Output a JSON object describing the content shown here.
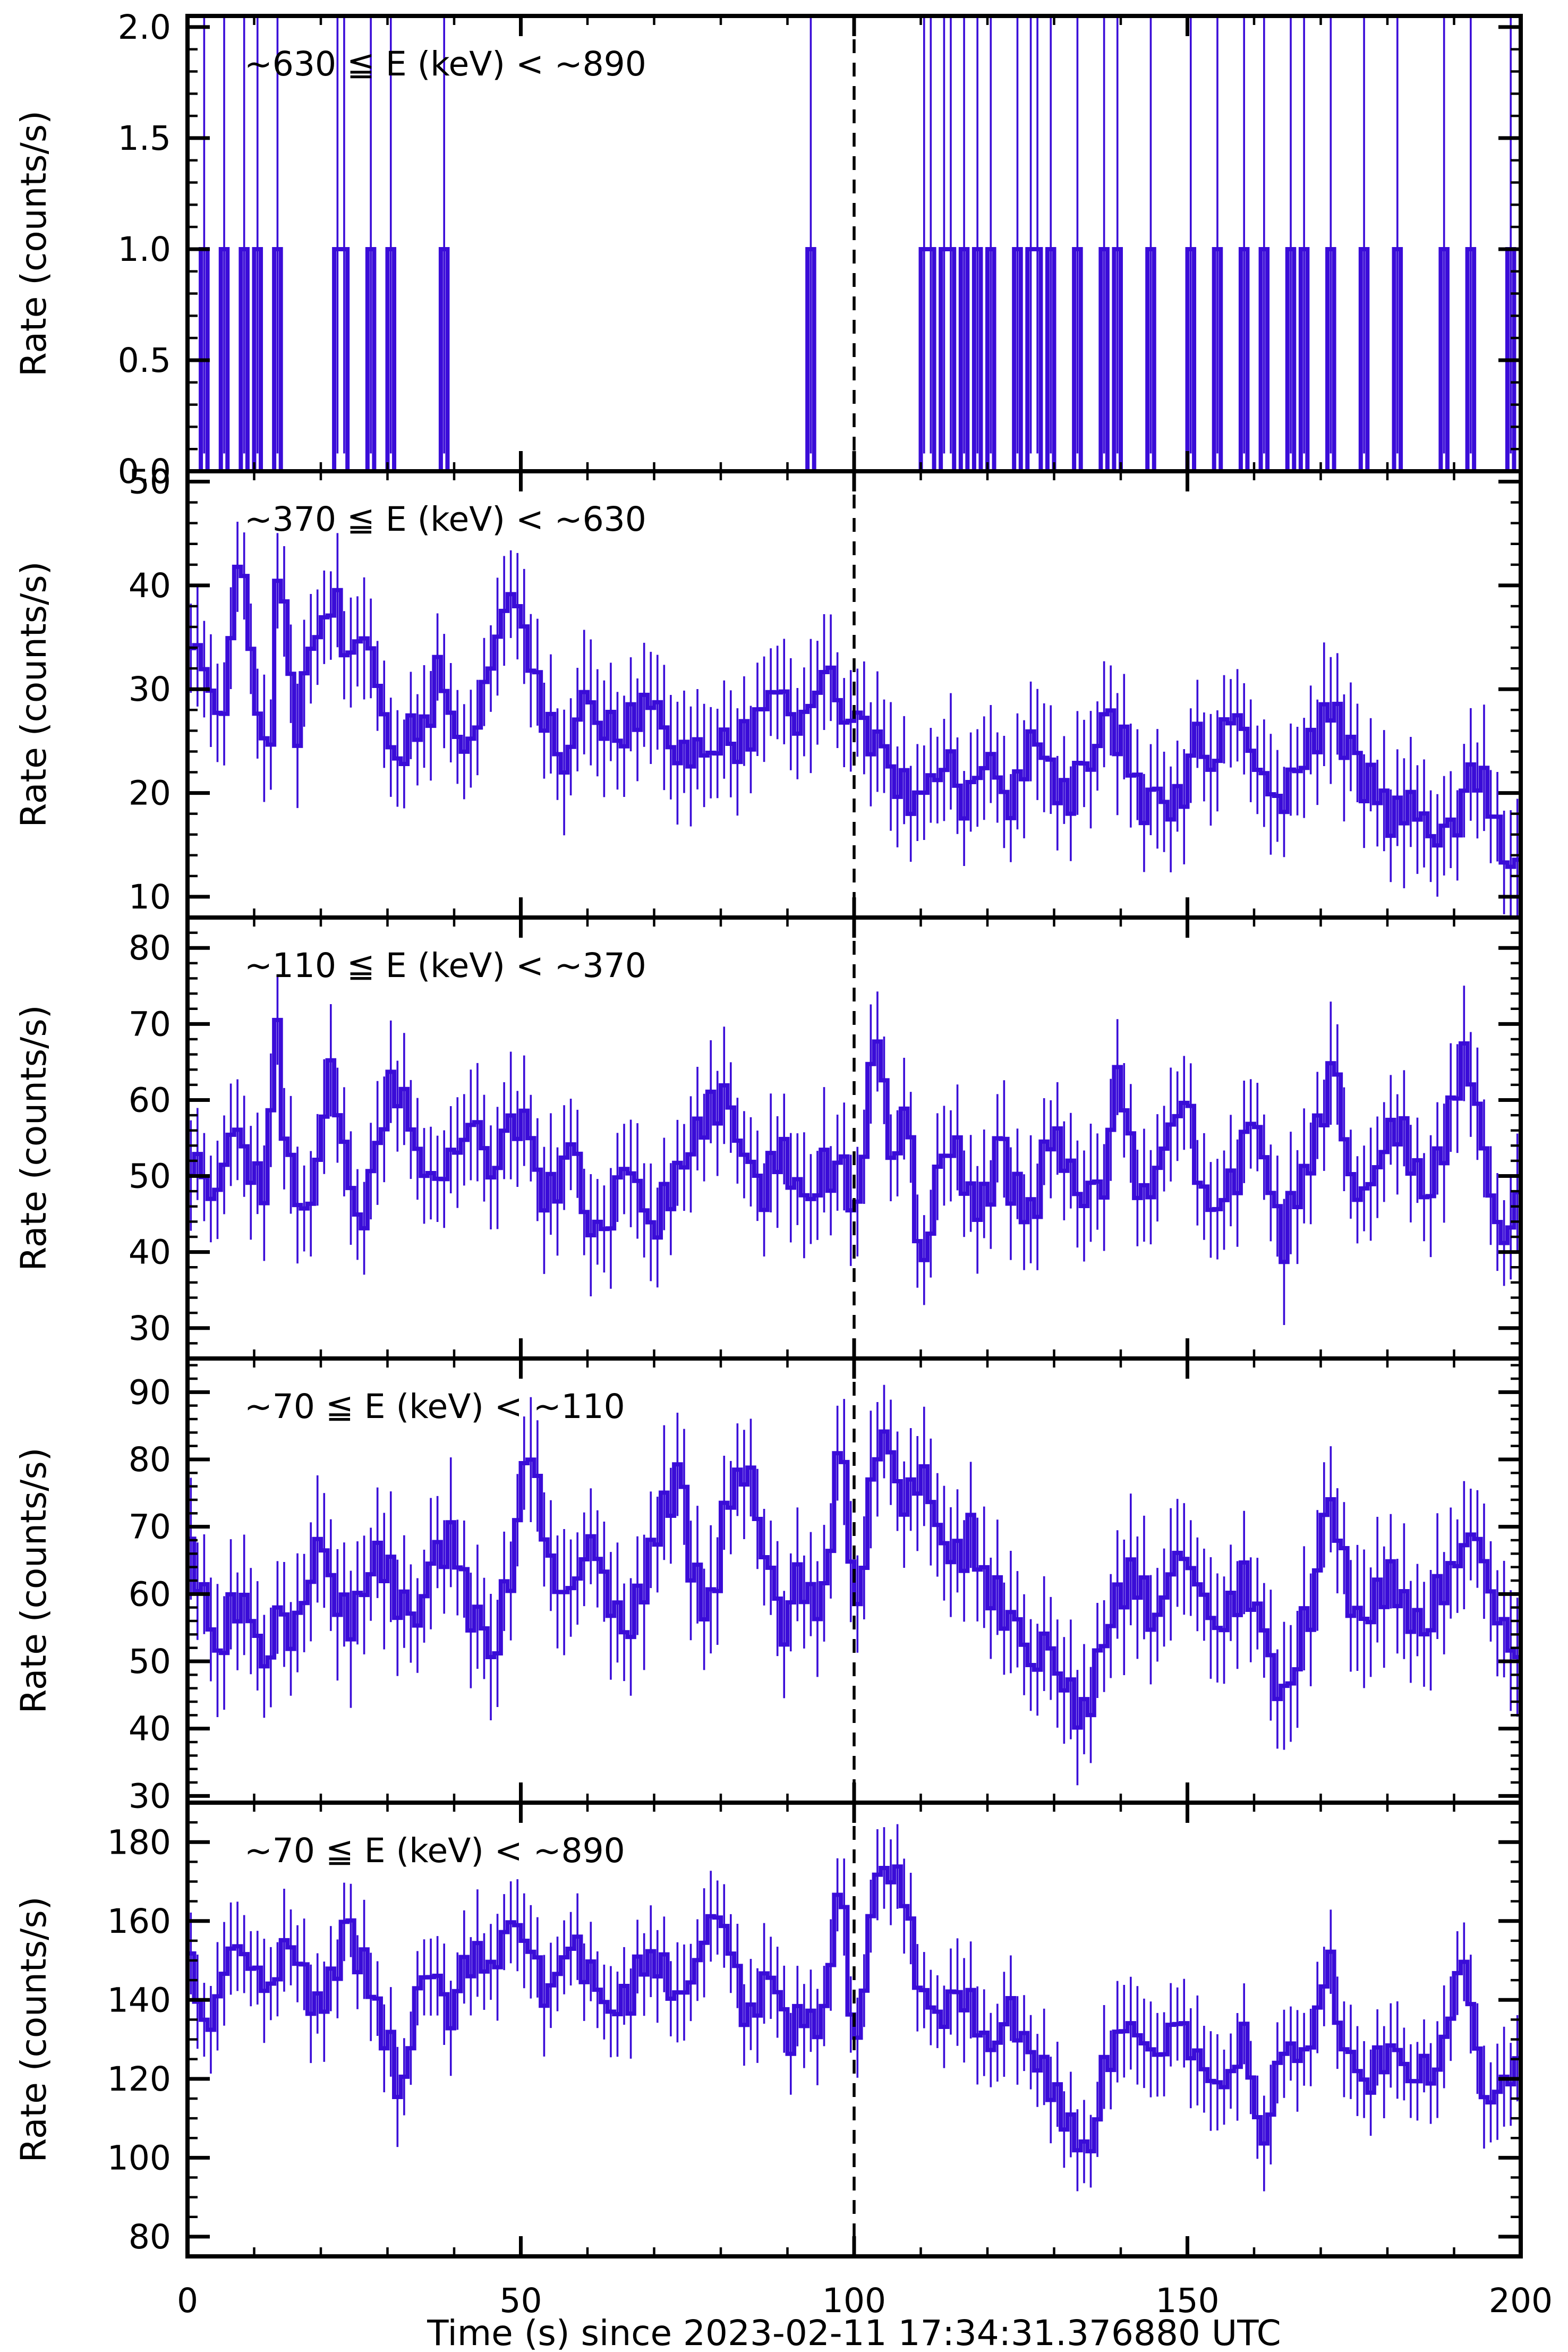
{
  "figure_caption": "Multi-band light curves, stepped histogram with error bars",
  "chart_axes": {
    "x": {
      "min": 0,
      "max": 200,
      "major_values": [
        0,
        50,
        100,
        150,
        200
      ],
      "major_labels": [
        "0",
        "50",
        "100",
        "150",
        "200"
      ],
      "minor_step": 10,
      "label": "Time (s) since 2023-02-11 17:34:31.376880 UTC"
    },
    "y": {
      "label": "Rate (counts/s)"
    },
    "dashed_marker_t": 100
  },
  "style": {
    "series_color": "#3A0CD8",
    "axis_color": "#000000",
    "background": "#ffffff",
    "dashed_line_color": "#000000"
  },
  "render_noise": {
    "t1": [
      0.62,
      -0.81,
      0.24,
      1.0,
      -0.45,
      -1.0,
      0.15,
      0.88,
      -0.62,
      0.95,
      -0.3,
      0.42,
      -1.1,
      0.7,
      -0.2,
      1.05,
      -0.85,
      0.1,
      0.55,
      -0.95,
      0.35,
      -0.6,
      1.15,
      -0.25,
      0.05,
      -1.05,
      0.8,
      0.3,
      -0.7,
      0.9,
      -0.15,
      0.5,
      -1.15,
      0.65,
      -0.4,
      0.2,
      -0.55
    ],
    "t2": [
      -0.35,
      0.75,
      -1.0,
      0.2,
      0.95,
      -0.65,
      0.4,
      -0.15,
      1.1,
      -0.8,
      0.05,
      0.6,
      -1.15,
      0.85,
      -0.45,
      0.25,
      -0.9,
      1.0,
      -0.1,
      0.5,
      -0.7,
      0.15,
      1.05,
      -0.55,
      -0.25,
      0.7,
      -1.05,
      0.45,
      0.9,
      -0.35,
      0.1,
      -0.75,
      0.55,
      1.15,
      -0.5,
      0.3,
      -1.1,
      0.65,
      -0.05,
      0.35,
      -0.85
    ]
  },
  "chart_data": [
    {
      "type": "spike-histogram",
      "title": "~630 ≦ E (keV) < ~890",
      "ylim": [
        0,
        2.05
      ],
      "ytick_values": [
        0,
        0.5,
        1.0,
        1.5,
        2.0
      ],
      "ytick_labels": [
        "0.0",
        "0.5",
        "1.0",
        "1.5",
        "2.0"
      ],
      "y_minor_step": 0.1,
      "bin_width_s": 1,
      "spike_times": [
        2,
        5,
        8,
        10,
        13,
        22.5,
        23.5,
        27,
        30,
        38,
        93,
        110,
        111,
        113.5,
        114.5,
        116.5,
        118,
        120.5,
        124,
        126,
        127.5,
        129.5,
        133.5,
        137,
        139,
        144,
        150,
        154.5,
        158,
        161,
        165.5,
        167,
        171,
        176,
        181,
        188,
        192,
        198
      ],
      "spike_value": 1.0,
      "err_lo": 0.08,
      "err_hi": 2.1
    },
    {
      "type": "step-histogram",
      "title": "~370 ≦ E (keV) < ~630",
      "ylim": [
        8,
        51
      ],
      "ytick_values": [
        10,
        20,
        30,
        40,
        50
      ],
      "ytick_labels": [
        "10",
        "20",
        "30",
        "40",
        "50"
      ],
      "y_minor_step": 2,
      "bin_width_s": 1,
      "sigma": 2.3,
      "err": 5.2,
      "phase": 0,
      "keyframes": [
        0,
        33,
        2,
        35,
        4,
        26,
        6,
        31,
        8,
        44,
        10,
        30,
        12,
        22,
        14,
        44,
        16,
        25,
        18,
        32,
        20,
        37,
        22,
        38,
        24,
        33,
        26,
        36,
        28,
        32,
        30,
        25,
        32,
        23,
        34,
        26,
        36,
        27,
        38,
        33,
        40,
        25,
        42,
        25,
        44,
        28,
        46,
        33,
        48,
        39,
        50,
        38,
        52,
        30,
        54,
        28,
        56,
        22,
        58,
        26,
        60,
        29,
        62,
        27,
        64,
        25,
        66,
        26,
        68,
        28,
        70,
        29,
        72,
        26,
        74,
        22,
        76,
        25,
        78,
        23,
        80,
        26,
        82,
        24,
        84,
        25,
        86,
        28,
        88,
        30,
        90,
        28,
        92,
        26,
        94,
        30,
        96,
        32,
        98,
        28,
        100,
        27,
        102,
        26,
        104,
        24,
        106,
        22,
        108,
        20,
        110,
        19,
        112,
        22,
        114,
        23,
        116,
        19,
        118,
        21,
        120,
        23,
        122,
        21,
        124,
        19,
        126,
        24,
        128,
        25,
        130,
        21,
        132,
        19,
        134,
        22,
        136,
        24,
        138,
        28,
        140,
        25,
        142,
        21,
        144,
        19,
        146,
        20,
        148,
        18,
        150,
        22,
        152,
        25,
        154,
        23,
        156,
        26,
        158,
        27,
        160,
        24,
        162,
        20,
        164,
        19,
        166,
        22,
        168,
        24,
        170,
        26,
        172,
        28,
        174,
        25,
        176,
        22,
        178,
        20,
        180,
        19,
        182,
        17,
        184,
        20,
        186,
        16,
        188,
        15,
        190,
        18,
        192,
        20,
        194,
        22,
        196,
        18,
        198,
        12,
        200,
        14
      ]
    },
    {
      "type": "step-histogram",
      "title": "~110 ≦ E (keV) < ~370",
      "ylim": [
        26,
        84
      ],
      "ytick_values": [
        30,
        40,
        50,
        60,
        70,
        80
      ],
      "ytick_labels": [
        "30",
        "40",
        "50",
        "60",
        "70",
        "80"
      ],
      "y_minor_step": 2,
      "bin_width_s": 1,
      "sigma": 3.4,
      "err": 7,
      "phase": 53,
      "keyframes": [
        0,
        55,
        2,
        50,
        4,
        48,
        6,
        52,
        8,
        57,
        10,
        49,
        12,
        46,
        13,
        75,
        14,
        60,
        16,
        48,
        18,
        44,
        20,
        56,
        22,
        64,
        24,
        50,
        26,
        43,
        28,
        52,
        30,
        60,
        32,
        62,
        34,
        55,
        36,
        48,
        38,
        50,
        40,
        53,
        42,
        57,
        44,
        55,
        46,
        50,
        48,
        56,
        50,
        58,
        52,
        52,
        54,
        47,
        56,
        50,
        58,
        55,
        60,
        44,
        62,
        40,
        64,
        48,
        66,
        52,
        68,
        46,
        70,
        44,
        72,
        47,
        74,
        50,
        76,
        55,
        78,
        58,
        80,
        60,
        82,
        58,
        84,
        52,
        86,
        48,
        88,
        50,
        90,
        54,
        92,
        46,
        94,
        48,
        96,
        52,
        98,
        50,
        100,
        46,
        102,
        56,
        103,
        68,
        104,
        66,
        106,
        48,
        107,
        60,
        108,
        60,
        110,
        35,
        112,
        48,
        114,
        55,
        116,
        52,
        118,
        44,
        120,
        48,
        122,
        55,
        124,
        48,
        126,
        44,
        128,
        50,
        130,
        56,
        132,
        52,
        134,
        46,
        136,
        48,
        138,
        52,
        140,
        64,
        142,
        50,
        144,
        46,
        146,
        52,
        148,
        58,
        150,
        60,
        152,
        50,
        154,
        44,
        156,
        48,
        158,
        52,
        160,
        58,
        162,
        50,
        164,
        42,
        166,
        46,
        168,
        52,
        170,
        56,
        172,
        66,
        174,
        52,
        176,
        46,
        178,
        50,
        180,
        54,
        182,
        58,
        184,
        50,
        186,
        46,
        188,
        54,
        190,
        60,
        192,
        66,
        194,
        58,
        196,
        44,
        198,
        40,
        200,
        50
      ]
    },
    {
      "type": "step-histogram",
      "title": "~70 ≦ E (keV) < ~110",
      "ylim": [
        29,
        95
      ],
      "ytick_values": [
        30,
        40,
        50,
        60,
        70,
        80,
        90
      ],
      "ytick_labels": [
        "30",
        "40",
        "50",
        "60",
        "70",
        "80",
        "90"
      ],
      "y_minor_step": 2,
      "bin_width_s": 1,
      "sigma": 4.0,
      "err": 8.5,
      "phase": 101,
      "keyframes": [
        0,
        68,
        2,
        62,
        4,
        50,
        6,
        56,
        8,
        60,
        10,
        54,
        12,
        50,
        14,
        56,
        16,
        55,
        18,
        60,
        20,
        68,
        22,
        62,
        24,
        55,
        26,
        58,
        28,
        66,
        30,
        64,
        32,
        58,
        34,
        56,
        36,
        62,
        38,
        68,
        40,
        66,
        42,
        60,
        44,
        55,
        46,
        50,
        48,
        62,
        50,
        72,
        52,
        85,
        54,
        64,
        56,
        58,
        58,
        62,
        60,
        68,
        62,
        64,
        64,
        58,
        66,
        54,
        68,
        60,
        70,
        66,
        72,
        75,
        74,
        78,
        76,
        62,
        78,
        56,
        80,
        68,
        82,
        76,
        84,
        80,
        86,
        68,
        88,
        60,
        90,
        56,
        92,
        62,
        94,
        58,
        96,
        60,
        98,
        87,
        100,
        57,
        102,
        66,
        103,
        84,
        105,
        84,
        106,
        78,
        108,
        70,
        109,
        80,
        111,
        75,
        113,
        68,
        115,
        64,
        117,
        70,
        119,
        64,
        121,
        60,
        123,
        56,
        125,
        55,
        127,
        48,
        129,
        54,
        131,
        46,
        133,
        44,
        135,
        42,
        137,
        50,
        139,
        58,
        141,
        64,
        143,
        60,
        145,
        56,
        147,
        62,
        149,
        66,
        151,
        62,
        153,
        58,
        155,
        54,
        157,
        60,
        159,
        62,
        161,
        56,
        163,
        48,
        165,
        44,
        167,
        52,
        169,
        58,
        171,
        78,
        173,
        64,
        175,
        58,
        177,
        56,
        179,
        60,
        181,
        62,
        183,
        58,
        185,
        54,
        187,
        58,
        189,
        62,
        191,
        66,
        193,
        70,
        195,
        62,
        197,
        56,
        199,
        50
      ]
    },
    {
      "type": "step-histogram",
      "title": "~70 ≦ E (keV) < ~890",
      "ylim": [
        75,
        190
      ],
      "ytick_values": [
        80,
        100,
        120,
        140,
        160,
        180
      ],
      "ytick_labels": [
        "80",
        "100",
        "120",
        "140",
        "160",
        "180"
      ],
      "y_minor_step": 5,
      "bin_width_s": 1,
      "sigma": 5.5,
      "err": 11.5,
      "phase": 151,
      "keyframes": [
        0,
        148,
        2,
        140,
        4,
        132,
        6,
        150,
        8,
        155,
        10,
        148,
        12,
        140,
        14,
        152,
        16,
        155,
        18,
        142,
        20,
        135,
        22,
        148,
        24,
        160,
        26,
        150,
        28,
        140,
        30,
        132,
        32,
        112,
        34,
        138,
        36,
        148,
        38,
        142,
        40,
        138,
        42,
        148,
        44,
        152,
        46,
        145,
        48,
        160,
        50,
        158,
        52,
        150,
        54,
        142,
        56,
        148,
        58,
        155,
        60,
        148,
        62,
        140,
        64,
        135,
        66,
        142,
        68,
        148,
        70,
        152,
        72,
        145,
        74,
        138,
        76,
        148,
        78,
        158,
        80,
        162,
        82,
        148,
        84,
        135,
        86,
        140,
        88,
        147,
        90,
        131,
        92,
        137,
        94,
        131,
        96,
        142,
        98,
        175,
        100,
        123,
        102,
        148,
        103,
        172,
        105,
        174,
        106,
        168,
        107,
        175,
        109,
        150,
        111,
        138,
        113,
        135,
        115,
        142,
        117,
        138,
        119,
        132,
        121,
        128,
        123,
        135,
        125,
        133,
        127,
        125,
        129,
        120,
        131,
        112,
        133,
        108,
        135,
        98,
        137,
        118,
        139,
        128,
        141,
        135,
        143,
        130,
        145,
        125,
        147,
        130,
        149,
        135,
        151,
        128,
        153,
        120,
        155,
        115,
        157,
        125,
        159,
        130,
        161,
        100,
        163,
        118,
        165,
        130,
        167,
        125,
        169,
        128,
        171,
        155,
        173,
        130,
        175,
        122,
        177,
        120,
        179,
        125,
        181,
        128,
        183,
        122,
        185,
        118,
        187,
        124,
        189,
        130,
        191,
        152,
        193,
        135,
        195,
        110,
        197,
        118,
        199,
        122
      ]
    }
  ]
}
